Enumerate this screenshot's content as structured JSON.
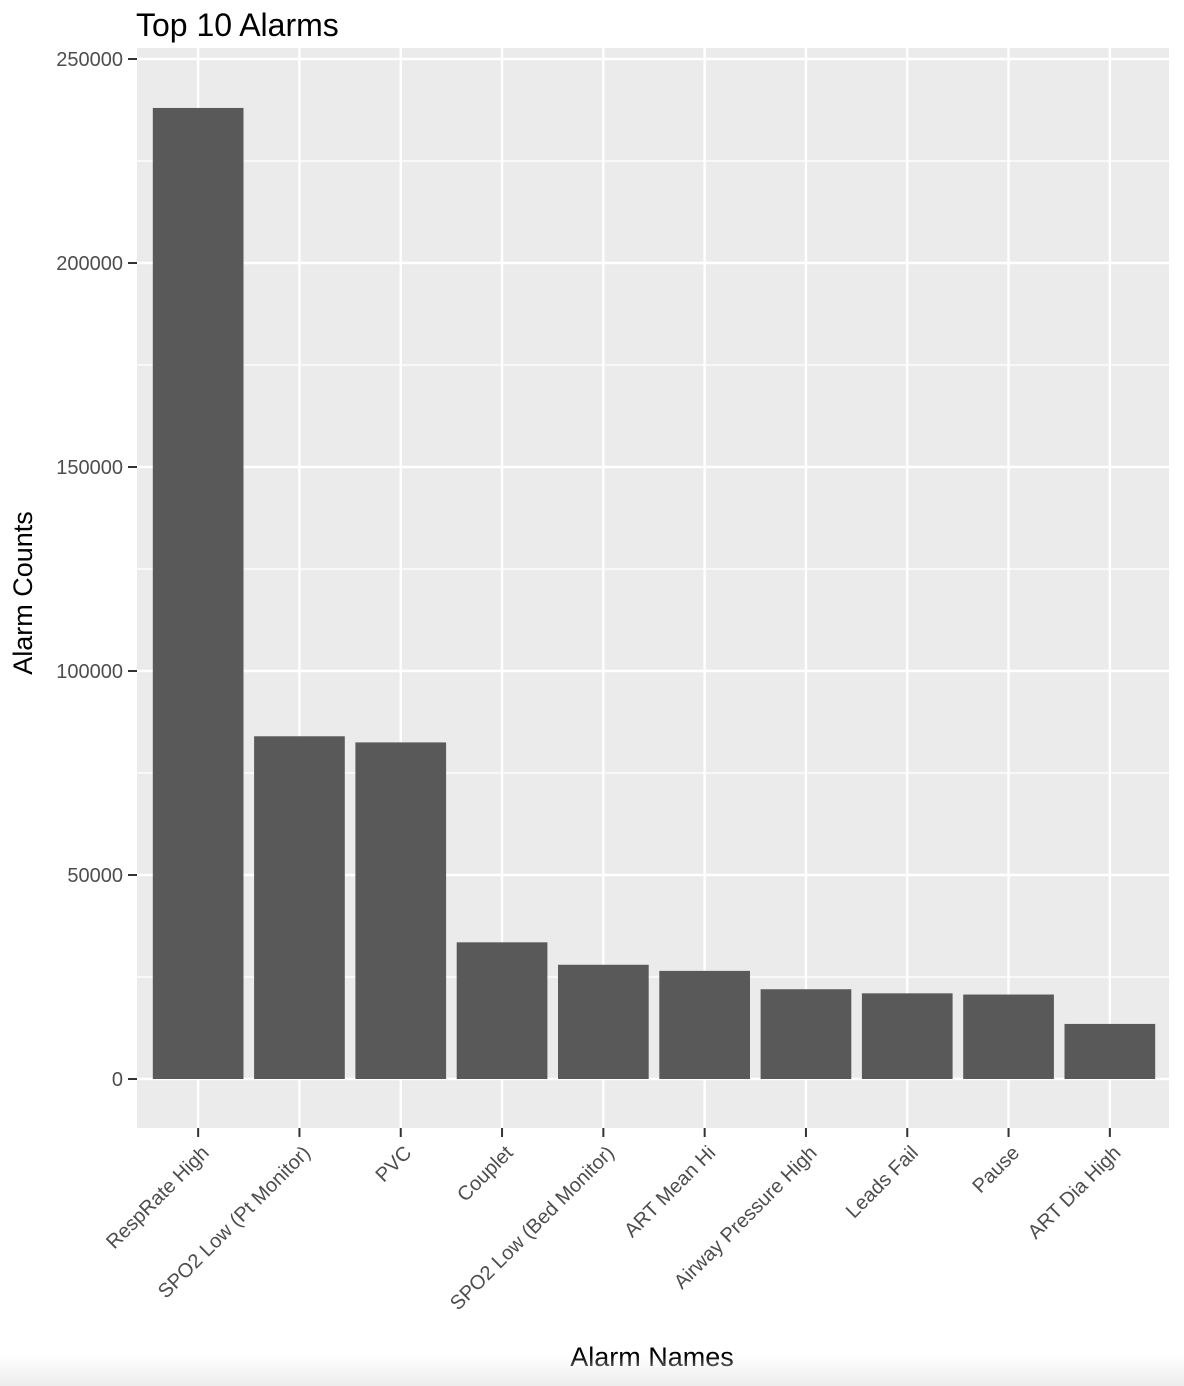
{
  "chart_data": {
    "type": "bar",
    "title": "Top 10 Alarms",
    "xlabel": "Alarm Names",
    "ylabel": "Alarm Counts",
    "categories": [
      "RespRate High",
      "SPO2 Low (Pt Monitor)",
      "PVC",
      "Couplet",
      "SPO2 Low (Bed Monitor)",
      "ART Mean Hi",
      "Airway Pressure High",
      "Leads Fail",
      "Pause",
      "ART Dia High"
    ],
    "values": [
      238000,
      84000,
      82500,
      33500,
      28000,
      26500,
      22000,
      21000,
      20700,
      13500
    ],
    "ylim": [
      0,
      250000
    ],
    "yticks": [
      0,
      50000,
      100000,
      150000,
      200000,
      250000
    ],
    "ytick_labels": [
      "0",
      "50000",
      "100000",
      "150000",
      "200000",
      "250000"
    ],
    "grid": true,
    "colors": {
      "panel_background": "#ebebeb",
      "grid_major": "#ffffff",
      "bar_fill": "#595959",
      "tick_mark": "#333333",
      "tick_text": "#4d4d4d"
    }
  }
}
